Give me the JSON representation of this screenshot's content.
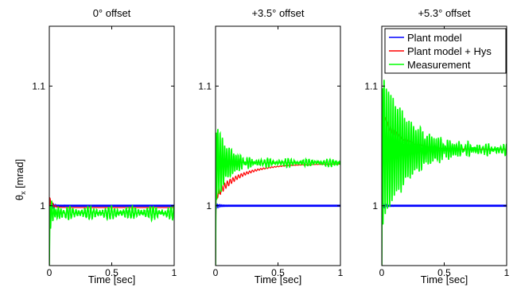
{
  "figure": {
    "ylabel": "θx [mrad]",
    "ylabel_main": "θ",
    "ylabel_sub": "x",
    "ylabel_unit": " [mrad]"
  },
  "legend": {
    "placement": "top-right of third panel",
    "entries": [
      {
        "label": "Plant model",
        "color": "#0000ff"
      },
      {
        "label": "Plant model + Hys",
        "color": "#ff0000"
      },
      {
        "label": "Measurement",
        "color": "#00ff00"
      }
    ]
  },
  "chart_data": [
    {
      "type": "line",
      "title": "0° offset",
      "xlabel": "Time [sec]",
      "ylabel": "θx [mrad]",
      "xlim": [
        0,
        1
      ],
      "ylim": [
        0.95,
        1.15
      ],
      "xticks": [
        0,
        0.5,
        1
      ],
      "xtick_labels": [
        "0",
        "0.5",
        "1"
      ],
      "yticks": [
        1.0,
        1.1
      ],
      "ytick_labels": [
        "1",
        "1.1"
      ],
      "grid": false,
      "series": [
        {
          "name": "Plant model",
          "color": "#0000ff",
          "final": 1.0,
          "initial_peak": 1.006,
          "decay_time": 0.02,
          "osc_amplitude": 0.0
        },
        {
          "name": "Plant model + Hys",
          "color": "#ff0000",
          "final": 0.9985,
          "initial_peak": 1.004,
          "decay_time": 0.03,
          "osc_amplitude": 0.0
        },
        {
          "name": "Measurement",
          "color": "#00ff00",
          "final": 0.994,
          "initial_peak": 1.004,
          "decay_time": 0.06,
          "osc_amplitude": 0.005,
          "min_value": 0.95
        }
      ]
    },
    {
      "type": "line",
      "title": "+3.5° offset",
      "xlabel": "Time [sec]",
      "ylabel": "",
      "xlim": [
        0,
        1
      ],
      "ylim": [
        0.95,
        1.15
      ],
      "xticks": [
        0,
        0.5,
        1
      ],
      "xtick_labels": [
        "0",
        "0.5",
        "1"
      ],
      "yticks": [
        1.0,
        1.1
      ],
      "ytick_labels": [
        "1",
        "1.1"
      ],
      "grid": false,
      "series": [
        {
          "name": "Plant model",
          "color": "#0000ff",
          "final": 1.0,
          "initial_peak": 1.003,
          "decay_time": 0.02,
          "osc_amplitude": 0.0
        },
        {
          "name": "Plant model + Hys",
          "color": "#ff0000",
          "final": 1.035,
          "initial_peak": 1.008,
          "decay_time": 0.2,
          "osc_amplitude": 0.0
        },
        {
          "name": "Measurement",
          "color": "#00ff00",
          "final": 1.036,
          "initial_peak": 1.07,
          "decay_time": 0.1,
          "osc_amplitude": 0.003,
          "min_value": 0.95
        }
      ]
    },
    {
      "type": "line",
      "title": "+5.3° offset",
      "xlabel": "Time [sec]",
      "ylabel": "",
      "xlim": [
        0,
        1
      ],
      "ylim": [
        0.95,
        1.15
      ],
      "xticks": [
        0,
        0.5,
        1
      ],
      "xtick_labels": [
        "0",
        "0.5",
        "1"
      ],
      "yticks": [
        1.0,
        1.1
      ],
      "ytick_labels": [
        "1",
        "1.1"
      ],
      "grid": false,
      "series": [
        {
          "name": "Plant model",
          "color": "#0000ff",
          "final": 1.0,
          "initial_peak": 1.003,
          "decay_time": 0.02,
          "osc_amplitude": 0.0
        },
        {
          "name": "Plant model + Hys",
          "color": "#ff0000",
          "final": 1.047,
          "initial_peak": 1.075,
          "decay_time": 0.15,
          "osc_amplitude": 0.0
        },
        {
          "name": "Measurement",
          "color": "#00ff00",
          "final": 1.047,
          "initial_peak": 1.11,
          "decay_time": 0.22,
          "osc_amplitude": 0.004,
          "min_value": 0.95
        }
      ]
    }
  ]
}
